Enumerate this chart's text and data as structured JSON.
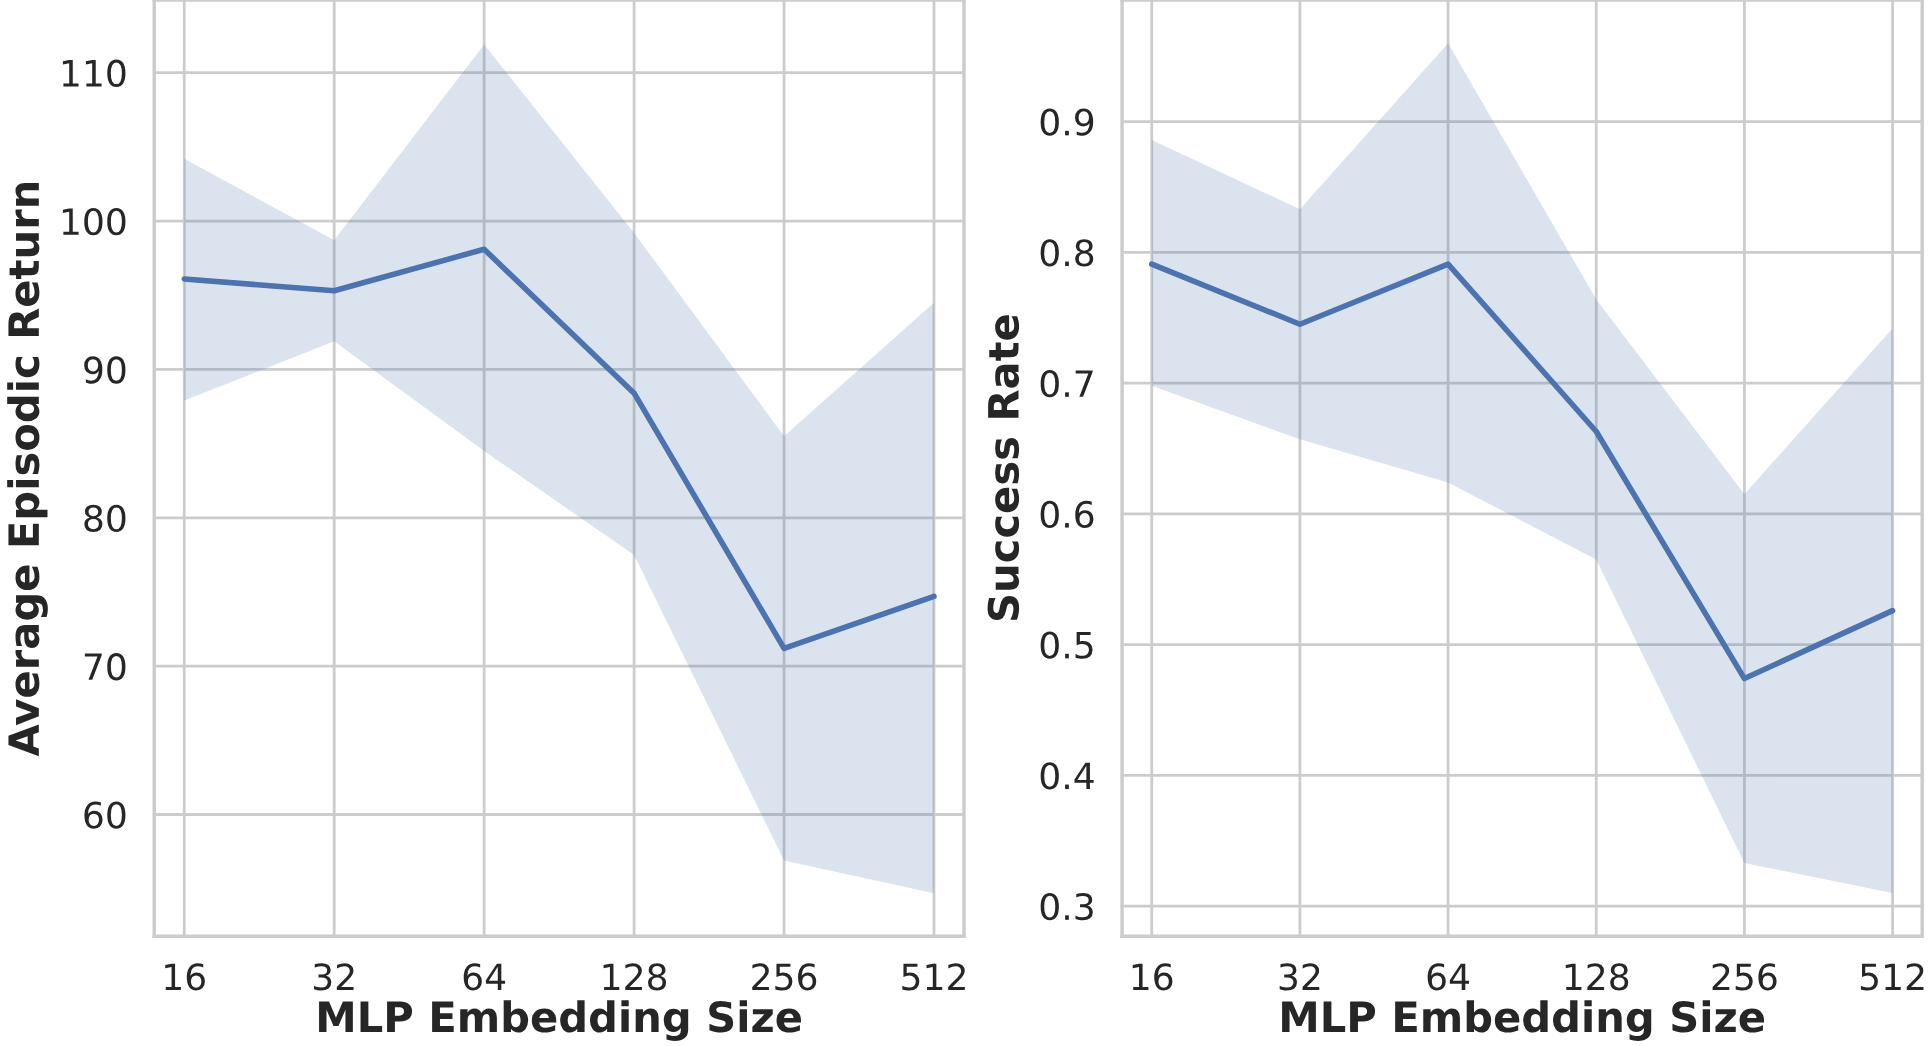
{
  "chart_data": [
    {
      "type": "line",
      "xlabel": "MLP Embedding Size",
      "ylabel": "Average Episodic Return",
      "categories": [
        "16",
        "32",
        "64",
        "128",
        "256",
        "512"
      ],
      "series": [
        {
          "color": "#4c72b0",
          "values": [
            96.1,
            95.3,
            98.1,
            88.4,
            71.2,
            74.7
          ],
          "lower": [
            87.9,
            91.9,
            84.5,
            77.5,
            56.9,
            54.7
          ],
          "upper": [
            104.2,
            98.7,
            111.9,
            99.2,
            85.5,
            94.5
          ]
        }
      ],
      "ylim": [
        51.8,
        114.9
      ],
      "yticks": [
        60,
        70,
        80,
        90,
        100,
        110
      ],
      "grid": true,
      "marker": "none",
      "line_style": "solid"
    },
    {
      "type": "line",
      "xlabel": "MLP Embedding Size",
      "ylabel": "Success Rate",
      "categories": [
        "16",
        "32",
        "64",
        "128",
        "256",
        "512"
      ],
      "series": [
        {
          "color": "#4c72b0",
          "values": [
            0.791,
            0.745,
            0.791,
            0.663,
            0.474,
            0.526
          ],
          "lower": [
            0.698,
            0.657,
            0.624,
            0.565,
            0.333,
            0.31
          ],
          "upper": [
            0.886,
            0.833,
            0.96,
            0.764,
            0.615,
            0.742
          ]
        }
      ],
      "ylim": [
        0.277,
        0.993
      ],
      "yticks": [
        0.3,
        0.4,
        0.5,
        0.6,
        0.7,
        0.8,
        0.9
      ],
      "grid": true,
      "marker": "none",
      "line_style": "solid"
    }
  ]
}
